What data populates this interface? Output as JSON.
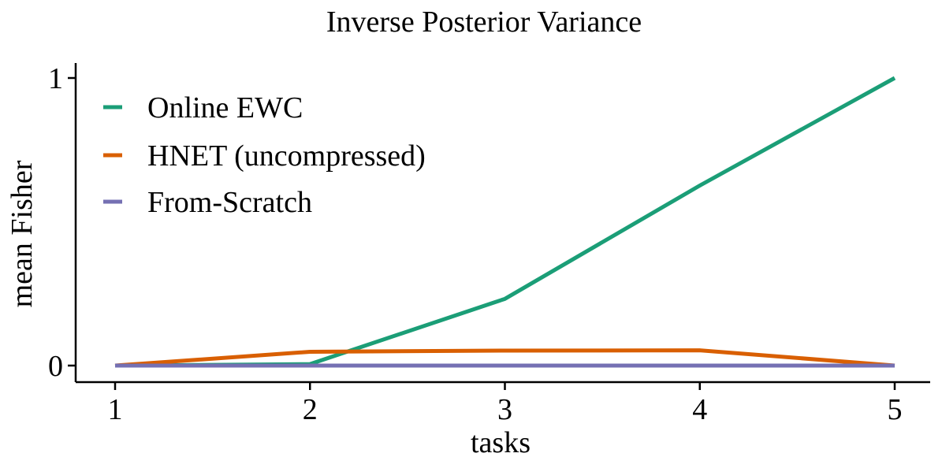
{
  "chart_data": {
    "type": "line",
    "title": "Inverse Posterior Variance",
    "xlabel": "tasks",
    "ylabel": "mean Fisher",
    "x": [
      1,
      2,
      3,
      4,
      5
    ],
    "xticks": [
      "1",
      "2",
      "3",
      "4",
      "5"
    ],
    "yticks": [
      "0",
      "1"
    ],
    "xlim": [
      0.8,
      5.15
    ],
    "ylim": [
      -0.055,
      1.055
    ],
    "grid": false,
    "legend_position": "top-left",
    "series": [
      {
        "name": "Online EWC",
        "values": [
          0.0,
          0.005,
          0.232,
          0.626,
          1.0
        ],
        "color": "#1b9e77"
      },
      {
        "name": "HNET (uncompressed)",
        "values": [
          0.0,
          0.048,
          0.052,
          0.053,
          0.0
        ],
        "color": "#d95f02"
      },
      {
        "name": "From-Scratch",
        "values": [
          0.0,
          0.0,
          0.0,
          0.0,
          0.0
        ],
        "color": "#7570b3"
      }
    ]
  }
}
